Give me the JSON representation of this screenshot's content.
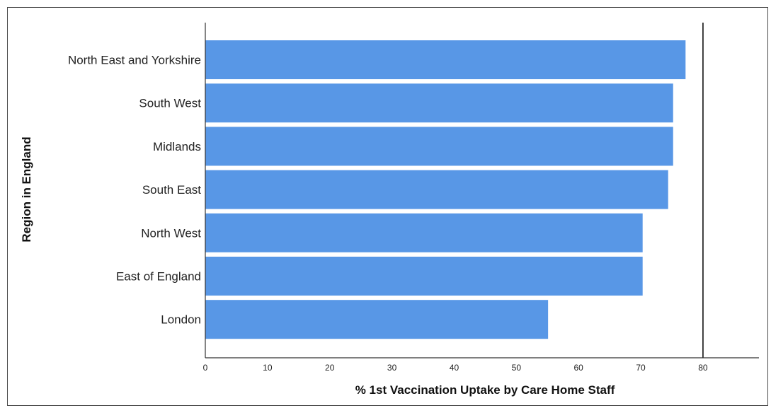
{
  "chart_data": {
    "type": "bar",
    "orientation": "horizontal",
    "categories": [
      "North East and Yorkshire",
      "South West",
      "Midlands",
      "South East",
      "North West",
      "East of England",
      "London"
    ],
    "values": [
      77.2,
      75.2,
      75.2,
      74.4,
      70.3,
      70.3,
      55.1
    ],
    "xlabel": "% 1st Vaccination Uptake by Care Home Staff",
    "ylabel": "Region in England",
    "xlim": [
      0,
      89
    ],
    "xticks": [
      0,
      10,
      20,
      30,
      40,
      50,
      60,
      70,
      80
    ],
    "reference_line": 80,
    "bar_color": "#5897e6",
    "grid": false,
    "legend": "none"
  }
}
